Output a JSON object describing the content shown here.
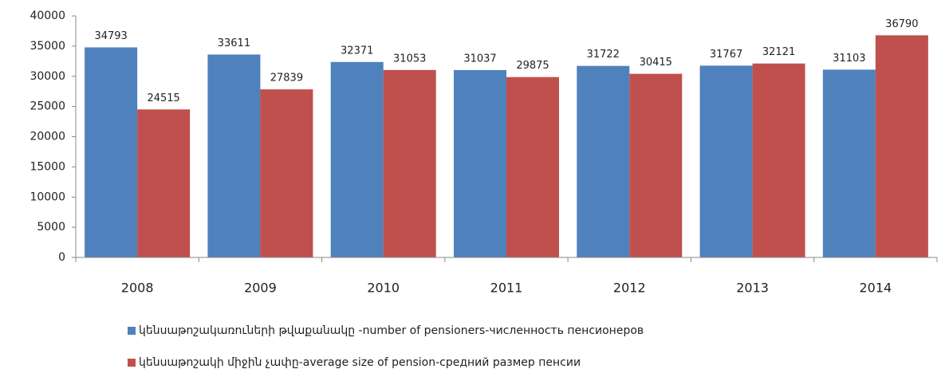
{
  "chart_data": {
    "type": "bar",
    "categories": [
      "2008",
      "2009",
      "2010",
      "2011",
      "2012",
      "2013",
      "2014"
    ],
    "series": [
      {
        "name": "կենսաթոշակառուների թվաքանակը -number of pensioners-численность пенсионеров",
        "color": "#4f81bd",
        "values": [
          34793,
          33611,
          32371,
          31037,
          31722,
          31767,
          31103
        ]
      },
      {
        "name": "կենսաթոշակի միջին չափը-average size of pension-средний размер пенсии",
        "color": "#c0504d",
        "values": [
          24515,
          27839,
          31053,
          29875,
          30415,
          32121,
          36790
        ]
      }
    ],
    "ylim": [
      0,
      40000
    ],
    "yticks": [
      0,
      5000,
      10000,
      15000,
      20000,
      25000,
      30000,
      35000,
      40000
    ]
  }
}
